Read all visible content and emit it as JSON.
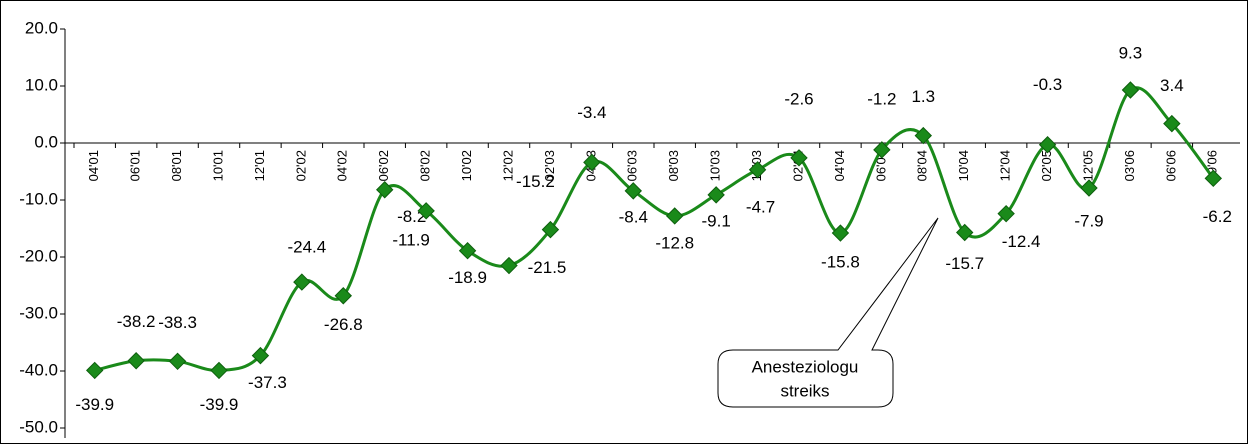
{
  "chart_data": {
    "type": "line",
    "categories": [
      "04'01",
      "06'01",
      "08'01",
      "10'01",
      "12'01",
      "02'02",
      "04'02",
      "06'02",
      "08'02",
      "10'02",
      "12'02",
      "02'03",
      "04'03",
      "06'03",
      "08'03",
      "10'03",
      "12'03",
      "02'04",
      "04'04",
      "06'04",
      "08'04",
      "10'04",
      "12'04",
      "02'05",
      "12'05",
      "03'06",
      "06'06",
      "09'06"
    ],
    "series": [
      {
        "color": "#1a8a1a",
        "values": [
          -39.9,
          -38.2,
          -38.3,
          -39.9,
          -37.3,
          -24.4,
          -26.8,
          -8.2,
          -11.9,
          -18.9,
          -21.5,
          -15.2,
          -3.4,
          -8.4,
          -12.8,
          -9.1,
          -4.7,
          -2.6,
          -15.8,
          -1.2,
          1.3,
          -15.7,
          -12.4,
          -0.3,
          -7.9,
          9.3,
          3.4,
          -6.2
        ]
      }
    ],
    "ylim": [
      -50,
      20
    ],
    "yticks": [
      {
        "value": -50,
        "label": "-50.0"
      },
      {
        "value": -40,
        "label": "-40.0"
      },
      {
        "value": -30,
        "label": "-30.0"
      },
      {
        "value": -20,
        "label": "-20.0"
      },
      {
        "value": -10,
        "label": "-10.0"
      },
      {
        "value": 0,
        "label": "0.0"
      },
      {
        "value": 10,
        "label": "10.0"
      },
      {
        "value": 20,
        "label": "20.0"
      }
    ],
    "annotation": [
      "Anesteziologu",
      "streiks"
    ]
  }
}
